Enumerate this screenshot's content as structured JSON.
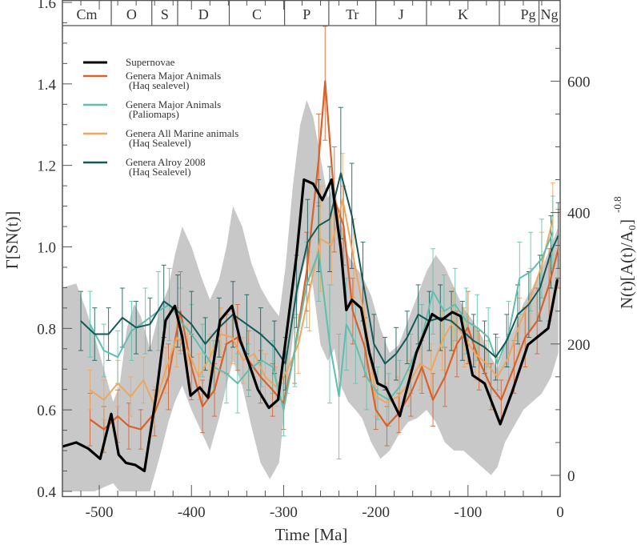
{
  "chart_data": {
    "type": "line",
    "xlabel": "Time [Ma]",
    "ylabel_left": "Γ[SN(t)]",
    "ylabel_right": "N(t)[A(t)/A₀]",
    "ylabel_right_exponent": "-0.8",
    "xlim": [
      -540,
      0
    ],
    "ylim_left": [
      0.4,
      1.6
    ],
    "ylim_right": [
      -28,
      725
    ],
    "x_ticks": [
      -500,
      -400,
      -300,
      -200,
      -100,
      0
    ],
    "x_tick_labels": [
      "-500",
      "-400",
      "-300",
      "-200",
      "-100",
      "0"
    ],
    "y_left_ticks": [
      0.4,
      0.6,
      0.8,
      1.0,
      1.2,
      1.4,
      1.6
    ],
    "y_left_tick_labels": [
      "0.4",
      "0.6",
      "0.8",
      "1.0",
      "1.2",
      "1.4",
      "1.6"
    ],
    "y_right_ticks": [
      0,
      200,
      400,
      600
    ],
    "y_right_tick_labels": [
      "0",
      "200",
      "400",
      "600"
    ],
    "grid": false,
    "legend_position": "top-left",
    "periods": [
      {
        "label": "Cm",
        "start": -540,
        "end": -487
      },
      {
        "label": "O",
        "start": -487,
        "end": -443
      },
      {
        "label": "S",
        "start": -443,
        "end": -415
      },
      {
        "label": "D",
        "start": -415,
        "end": -359
      },
      {
        "label": "C",
        "start": -359,
        "end": -299
      },
      {
        "label": "P",
        "start": -299,
        "end": -251
      },
      {
        "label": "Tr",
        "start": -251,
        "end": -200
      },
      {
        "label": "J",
        "start": -200,
        "end": -145
      },
      {
        "label": "K",
        "start": -145,
        "end": -66
      },
      {
        "label": "Pg",
        "start": -66,
        "end": -23
      },
      {
        "label": "Ng",
        "start": -23,
        "end": 0
      }
    ],
    "band": {
      "name": "Supernovae uncertainty",
      "axis": "left",
      "color": "#c8c8c8",
      "x": [
        -540,
        -525,
        -515,
        -505,
        -495,
        -485,
        -478,
        -470,
        -462,
        -455,
        -445,
        -435,
        -425,
        -418,
        -410,
        -400,
        -390,
        -380,
        -370,
        -362,
        -355,
        -345,
        -335,
        -325,
        -315,
        -305,
        -298,
        -290,
        -282,
        -275,
        -268,
        -260,
        -252,
        -245,
        -238,
        -230,
        -222,
        -215,
        -205,
        -195,
        -185,
        -175,
        -165,
        -155,
        -145,
        -135,
        -125,
        -115,
        -105,
        -95,
        -85,
        -75,
        -68,
        -60,
        -50,
        -40,
        -30,
        -20,
        -10,
        -2
      ],
      "upper": [
        0.9,
        0.91,
        0.85,
        0.78,
        0.7,
        0.62,
        0.66,
        0.8,
        0.86,
        0.83,
        0.75,
        0.84,
        0.9,
        0.98,
        1.05,
        1.0,
        0.93,
        0.87,
        0.92,
        1.0,
        1.1,
        1.05,
        0.96,
        0.9,
        0.86,
        0.83,
        0.95,
        1.15,
        1.3,
        1.36,
        1.32,
        1.22,
        1.12,
        1.15,
        1.06,
        0.98,
        0.95,
        0.93,
        0.88,
        0.8,
        0.74,
        0.76,
        0.82,
        0.88,
        0.94,
        0.98,
        0.95,
        0.9,
        0.85,
        0.82,
        0.78,
        0.73,
        0.7,
        0.76,
        0.8,
        0.86,
        0.9,
        0.95,
        1.0,
        1.05
      ],
      "lower": [
        0.4,
        0.4,
        0.4,
        0.4,
        0.41,
        0.42,
        0.4,
        0.4,
        0.4,
        0.4,
        0.4,
        0.48,
        0.57,
        0.62,
        0.66,
        0.6,
        0.55,
        0.5,
        0.58,
        0.66,
        0.72,
        0.66,
        0.56,
        0.47,
        0.43,
        0.47,
        0.62,
        0.78,
        0.92,
        0.98,
        0.9,
        0.76,
        0.72,
        0.75,
        0.66,
        0.62,
        0.6,
        0.58,
        0.52,
        0.48,
        0.5,
        0.54,
        0.57,
        0.58,
        0.6,
        0.57,
        0.52,
        0.5,
        0.5,
        0.48,
        0.46,
        0.44,
        0.46,
        0.52,
        0.56,
        0.6,
        0.62,
        0.64,
        0.68,
        0.74
      ]
    },
    "series": [
      {
        "name": "Supernovae",
        "legend": "Supernovae",
        "legend_sub": "",
        "axis": "left",
        "color": "#000000",
        "width": 3.2,
        "x": [
          -540,
          -525,
          -512,
          -499,
          -487,
          -479,
          -471,
          -461,
          -451,
          -438,
          -428,
          -418,
          -410,
          -401,
          -391,
          -382,
          -369,
          -356,
          -347,
          -337,
          -328,
          -316,
          -306,
          -295,
          -286,
          -278,
          -268,
          -258,
          -248,
          -238,
          -232,
          -226,
          -216,
          -207,
          -198,
          -189,
          -174,
          -156,
          -139,
          -129,
          -117,
          -108,
          -95,
          -82,
          -65,
          -52,
          -35,
          -13,
          -3
        ],
        "y": [
          0.51,
          0.52,
          0.505,
          0.48,
          0.59,
          0.49,
          0.47,
          0.465,
          0.45,
          0.64,
          0.82,
          0.855,
          0.78,
          0.635,
          0.655,
          0.63,
          0.82,
          0.855,
          0.77,
          0.71,
          0.65,
          0.605,
          0.625,
          0.82,
          0.98,
          1.165,
          1.155,
          1.115,
          1.165,
          0.995,
          0.845,
          0.87,
          0.85,
          0.74,
          0.665,
          0.655,
          0.585,
          0.74,
          0.835,
          0.82,
          0.84,
          0.83,
          0.685,
          0.665,
          0.565,
          0.645,
          0.76,
          0.8,
          0.92
        ]
      },
      {
        "name": "Genera Major Animals (Haq sealevel)",
        "legend": "Genera Major Animals",
        "legend_sub": "(Haq sealevel)",
        "axis": "right",
        "color": "#d9612b",
        "width": 2.2,
        "x": [
          -510,
          -495,
          -480,
          -468,
          -455,
          -440,
          -425,
          -412,
          -400,
          -388,
          -375,
          -362,
          -350,
          -338,
          -325,
          -312,
          -300,
          -288,
          -275,
          -262,
          -255,
          -245,
          -235,
          -225,
          -212,
          -200,
          -188,
          -175,
          -162,
          -150,
          -138,
          -125,
          -112,
          -100,
          -88,
          -75,
          -64,
          -50,
          -38,
          -25,
          -12,
          -2
        ],
        "y": [
          85,
          70,
          90,
          75,
          70,
          95,
          150,
          250,
          165,
          105,
          130,
          200,
          210,
          175,
          150,
          130,
          110,
          190,
          310,
          480,
          600,
          420,
          380,
          250,
          195,
          100,
          75,
          95,
          125,
          165,
          115,
          150,
          200,
          225,
          175,
          135,
          115,
          165,
          210,
          235,
          290,
          345
        ],
        "err": [
          40,
          35,
          40,
          35,
          30,
          35,
          50,
          60,
          50,
          40,
          40,
          45,
          50,
          45,
          40,
          40,
          40,
          50,
          60,
          70,
          90,
          80,
          60,
          50,
          45,
          30,
          30,
          30,
          35,
          40,
          40,
          45,
          50,
          55,
          45,
          35,
          30,
          40,
          45,
          50,
          55,
          60
        ]
      },
      {
        "name": "Genera Major Animals (Paliomaps)",
        "legend": "Genera Major Animals",
        "legend_sub": "(Paliomaps)",
        "axis": "right",
        "color": "#5fbfae",
        "width": 2.0,
        "x": [
          -510,
          -495,
          -480,
          -465,
          -450,
          -436,
          -424,
          -412,
          -400,
          -388,
          -376,
          -362,
          -350,
          -338,
          -324,
          -312,
          -300,
          -288,
          -275,
          -262,
          -250,
          -240,
          -232,
          -222,
          -210,
          -198,
          -186,
          -174,
          -162,
          -150,
          -138,
          -126,
          -114,
          -102,
          -90,
          -78,
          -68,
          -56,
          -44,
          -32,
          -20,
          -8
        ],
        "y": [
          230,
          190,
          180,
          220,
          235,
          250,
          260,
          235,
          215,
          190,
          165,
          155,
          140,
          160,
          175,
          165,
          100,
          190,
          290,
          340,
          200,
          120,
          230,
          200,
          150,
          125,
          115,
          135,
          170,
          210,
          280,
          250,
          260,
          235,
          225,
          210,
          170,
          215,
          300,
          310,
          330,
          370
        ],
        "err": [
          50,
          40,
          40,
          45,
          50,
          60,
          55,
          50,
          45,
          40,
          40,
          45,
          45,
          40,
          40,
          40,
          40,
          55,
          65,
          75,
          90,
          95,
          70,
          60,
          50,
          40,
          40,
          40,
          45,
          50,
          65,
          55,
          55,
          50,
          50,
          45,
          40,
          50,
          55,
          60,
          60,
          55
        ]
      },
      {
        "name": "Genera All Marine animals (Haq Sealevel)",
        "legend": "Genera All Marine animals",
        "legend_sub": "(Haq Sealevel)",
        "axis": "right",
        "color": "#f0a55c",
        "width": 2.0,
        "x": [
          -510,
          -495,
          -480,
          -466,
          -452,
          -440,
          -428,
          -416,
          -404,
          -392,
          -380,
          -368,
          -356,
          -344,
          -332,
          -320,
          -308,
          -296,
          -284,
          -272,
          -260,
          -248,
          -236,
          -224,
          -212,
          -200,
          -188,
          -176,
          -164,
          -152,
          -140,
          -128,
          -116,
          -104,
          -92,
          -80,
          -68,
          -56,
          -44,
          -32,
          -20,
          -8
        ],
        "y": [
          130,
          115,
          140,
          120,
          145,
          105,
          160,
          210,
          190,
          150,
          180,
          215,
          210,
          175,
          185,
          150,
          135,
          160,
          200,
          280,
          360,
          350,
          420,
          330,
          240,
          120,
          110,
          120,
          140,
          170,
          160,
          205,
          235,
          210,
          185,
          170,
          150,
          180,
          230,
          270,
          320,
          390
        ],
        "err": [
          30,
          30,
          35,
          30,
          35,
          30,
          35,
          45,
          40,
          35,
          35,
          40,
          40,
          35,
          35,
          35,
          30,
          35,
          45,
          60,
          80,
          60,
          70,
          60,
          45,
          30,
          30,
          30,
          35,
          40,
          40,
          45,
          50,
          45,
          40,
          35,
          30,
          35,
          40,
          45,
          50,
          55
        ]
      },
      {
        "name": "Genera Alroy 2008 (Haq Sealevel)",
        "legend": "Genera Alroy 2008",
        "legend_sub": "(Haq Sealevel)",
        "axis": "right",
        "color": "#135a57",
        "width": 2.0,
        "x": [
          -520,
          -505,
          -490,
          -475,
          -460,
          -445,
          -430,
          -415,
          -400,
          -385,
          -370,
          -355,
          -340,
          -325,
          -310,
          -298,
          -286,
          -274,
          -262,
          -250,
          -238,
          -226,
          -214,
          -202,
          -190,
          -178,
          -166,
          -154,
          -142,
          -130,
          -118,
          -106,
          -94,
          -82,
          -70,
          -58,
          -46,
          -34,
          -22,
          -10,
          -2
        ],
        "y": [
          235,
          215,
          215,
          240,
          225,
          230,
          265,
          250,
          230,
          200,
          225,
          245,
          230,
          215,
          195,
          170,
          280,
          355,
          380,
          390,
          460,
          395,
          295,
          200,
          170,
          185,
          210,
          245,
          235,
          240,
          235,
          220,
          205,
          195,
          180,
          205,
          245,
          260,
          285,
          340,
          365
        ],
        "err": [
          45,
          40,
          40,
          45,
          40,
          40,
          55,
          55,
          50,
          40,
          45,
          50,
          45,
          40,
          40,
          40,
          55,
          65,
          70,
          80,
          100,
          80,
          60,
          45,
          40,
          40,
          40,
          45,
          45,
          50,
          45,
          45,
          40,
          40,
          35,
          40,
          45,
          50,
          50,
          55,
          50
        ]
      }
    ]
  }
}
